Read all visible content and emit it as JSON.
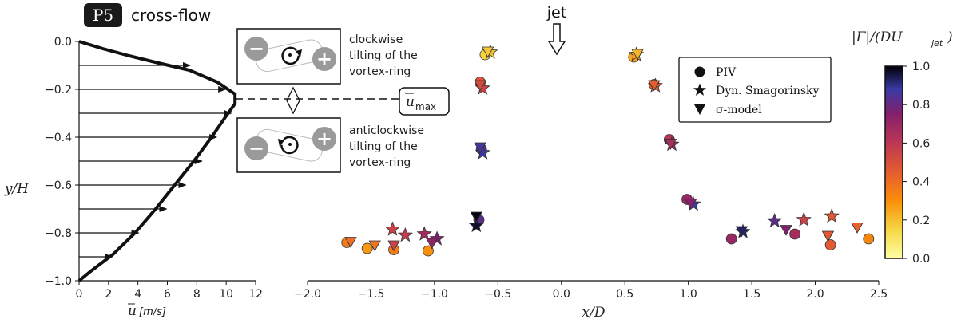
{
  "header": {
    "panel_tag": "P5",
    "panel_title": "cross-flow",
    "jet_label": "jet"
  },
  "profile": {
    "ylabel": "y/H",
    "xlabel_var": "u",
    "xlabel_unit": "[m/s]",
    "umax_label": "u",
    "umax_sub": "max"
  },
  "vortex_ring": {
    "top_desc": [
      "clockwise",
      "tilting of the",
      "vortex-ring"
    ],
    "bottom_desc": [
      "anticlockwise",
      "tilting of the",
      "vortex-ring"
    ],
    "minus_symbol": "−",
    "plus_symbol": "+"
  },
  "legend": {
    "entries": [
      "PIV",
      "Dyn. Smagorinsky",
      "σ-model"
    ]
  },
  "colorbar": {
    "label": "|Γ|/(DU",
    "label_sub": "jet",
    "label_end": ")",
    "ticks": [
      "0.0",
      "0.2",
      "0.4",
      "0.6",
      "0.8",
      "1.0"
    ]
  },
  "chart_data": [
    {
      "type": "line",
      "title": "",
      "xlabel": "u [m/s]",
      "ylabel": "y/H",
      "xlim": [
        0,
        12
      ],
      "ylim": [
        -1.0,
        0.0
      ],
      "x_ticks": [
        "0",
        "2",
        "4",
        "6",
        "8",
        "10",
        "12"
      ],
      "y_ticks": [
        "0.0",
        "−0.2",
        "−0.4",
        "−0.6",
        "−0.8",
        "−1.0"
      ],
      "series": [
        {
          "x": [
            0,
            1.6,
            3.4,
            5.4,
            7.5,
            9.4,
            10.6,
            10.6,
            9.9,
            9.0,
            7.8,
            6.5,
            5.2,
            3.8,
            2.3,
            0.8,
            0
          ],
          "y": [
            0.0,
            -0.03,
            -0.06,
            -0.09,
            -0.12,
            -0.17,
            -0.22,
            -0.26,
            -0.32,
            -0.4,
            -0.5,
            -0.6,
            -0.7,
            -0.8,
            -0.89,
            -0.96,
            -1.0
          ]
        }
      ],
      "arrows": {
        "y": [
          -0.1,
          -0.2,
          -0.3,
          -0.4,
          -0.5,
          -0.6,
          -0.7,
          -0.8,
          -0.9
        ],
        "u": [
          7.6,
          10.0,
          10.4,
          9.4,
          8.4,
          7.3,
          6.0,
          4.1,
          2.3
        ]
      },
      "umax_y": -0.24
    },
    {
      "type": "scatter",
      "title": "",
      "xlabel": "x/D",
      "ylabel": "",
      "xlim": [
        -2.0,
        2.5
      ],
      "ylim": [
        -1.0,
        0.0
      ],
      "x_ticks": [
        "−2.0",
        "−1.5",
        "−1.0",
        "−0.5",
        "0.0",
        "0.5",
        "1.0",
        "1.5",
        "2.0",
        "2.5"
      ],
      "color_range": [
        0.0,
        1.0
      ],
      "series": [
        {
          "name": "PIV",
          "marker": "circle",
          "points": [
            {
              "x": -0.6,
              "y": -0.055,
              "c": 0.15
            },
            {
              "x": 0.57,
              "y": -0.065,
              "c": 0.26
            },
            {
              "x": -0.64,
              "y": -0.17,
              "c": 0.48
            },
            {
              "x": 0.73,
              "y": -0.18,
              "c": 0.43
            },
            {
              "x": -0.63,
              "y": -0.45,
              "c": 0.82
            },
            {
              "x": 0.85,
              "y": -0.41,
              "c": 0.62
            },
            {
              "x": -0.65,
              "y": -0.745,
              "c": 0.82
            },
            {
              "x": 0.99,
              "y": -0.66,
              "c": 0.7
            },
            {
              "x": -1.69,
              "y": -0.84,
              "c": 0.36
            },
            {
              "x": -1.53,
              "y": -0.865,
              "c": 0.28
            },
            {
              "x": -1.32,
              "y": -0.87,
              "c": 0.35
            },
            {
              "x": -1.05,
              "y": -0.875,
              "c": 0.3
            },
            {
              "x": 1.34,
              "y": -0.825,
              "c": 0.7
            },
            {
              "x": 1.84,
              "y": -0.805,
              "c": 0.66
            },
            {
              "x": 2.12,
              "y": -0.85,
              "c": 0.46
            },
            {
              "x": 2.42,
              "y": -0.825,
              "c": 0.32
            }
          ]
        },
        {
          "name": "Dyn. Smagorinsky",
          "marker": "star",
          "points": [
            {
              "x": -0.56,
              "y": -0.045,
              "c": 0.2
            },
            {
              "x": 0.59,
              "y": -0.055,
              "c": 0.24
            },
            {
              "x": -0.62,
              "y": -0.195,
              "c": 0.55
            },
            {
              "x": 0.74,
              "y": -0.185,
              "c": 0.47
            },
            {
              "x": -0.62,
              "y": -0.465,
              "c": 0.87
            },
            {
              "x": 0.87,
              "y": -0.43,
              "c": 0.7
            },
            {
              "x": -0.67,
              "y": -0.77,
              "c": 0.97
            },
            {
              "x": 1.04,
              "y": -0.68,
              "c": 0.88
            },
            {
              "x": -1.33,
              "y": -0.785,
              "c": 0.55
            },
            {
              "x": -1.23,
              "y": -0.81,
              "c": 0.58
            },
            {
              "x": -1.08,
              "y": -0.805,
              "c": 0.67
            },
            {
              "x": -0.98,
              "y": -0.825,
              "c": 0.76
            },
            {
              "x": 1.43,
              "y": -0.795,
              "c": 0.93
            },
            {
              "x": 1.68,
              "y": -0.75,
              "c": 0.82
            },
            {
              "x": 1.91,
              "y": -0.745,
              "c": 0.55
            },
            {
              "x": 2.13,
              "y": -0.73,
              "c": 0.47
            }
          ]
        },
        {
          "name": "σ-model",
          "marker": "triangle",
          "points": [
            {
              "x": -0.58,
              "y": -0.04,
              "c": 0.18
            },
            {
              "x": 0.6,
              "y": -0.05,
              "c": 0.22
            },
            {
              "x": -0.64,
              "y": -0.18,
              "c": 0.52
            },
            {
              "x": 0.73,
              "y": -0.18,
              "c": 0.45
            },
            {
              "x": -0.64,
              "y": -0.44,
              "c": 0.86
            },
            {
              "x": 0.86,
              "y": -0.425,
              "c": 0.66
            },
            {
              "x": -0.67,
              "y": -0.73,
              "c": 0.99
            },
            {
              "x": 1.02,
              "y": -0.675,
              "c": 0.75
            },
            {
              "x": -1.66,
              "y": -0.835,
              "c": 0.4
            },
            {
              "x": -1.47,
              "y": -0.85,
              "c": 0.38
            },
            {
              "x": -1.32,
              "y": -0.85,
              "c": 0.55
            },
            {
              "x": -1.02,
              "y": -0.84,
              "c": 0.72
            },
            {
              "x": 1.42,
              "y": -0.79,
              "c": 0.93
            },
            {
              "x": 1.77,
              "y": -0.785,
              "c": 0.76
            },
            {
              "x": 2.1,
              "y": -0.81,
              "c": 0.47
            },
            {
              "x": 2.33,
              "y": -0.775,
              "c": 0.44
            }
          ]
        }
      ]
    }
  ]
}
